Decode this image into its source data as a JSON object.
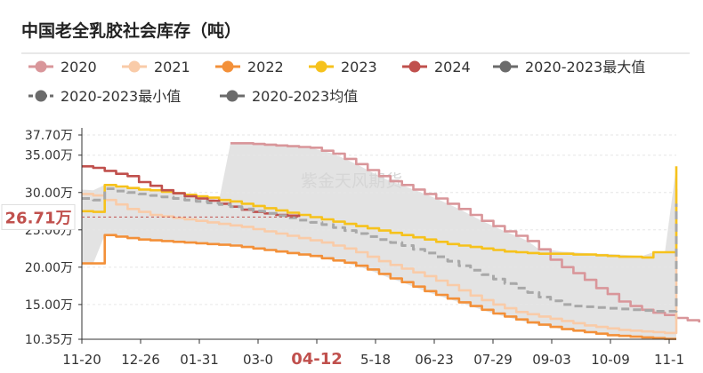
{
  "chart_data": {
    "type": "line",
    "title": "中国老全乳胶社会库存（吨）",
    "watermark": "紫金天风期货",
    "highlight_y_label": "26.71万",
    "highlight_x_label": "04-12",
    "ylim": [
      10.35,
      37.7
    ],
    "y_ticks": [
      "37.70万",
      "35.00万",
      "30.00万",
      "25.00万",
      "20.00万",
      "15.00万",
      "10.35万"
    ],
    "y_tick_values": [
      37.7,
      35.0,
      30.0,
      25.0,
      20.0,
      15.0,
      10.35
    ],
    "x_ticks": [
      "11-20",
      "12-26",
      "01-31",
      "03-0",
      "04-12",
      "5-18",
      "06-23",
      "07-29",
      "09-03",
      "10-09",
      "11-1"
    ],
    "band_color": "#e3e3e3",
    "legend": [
      {
        "name": "2020",
        "color": "#d9969a",
        "dashed": false
      },
      {
        "name": "2021",
        "color": "#f9cba8",
        "dashed": false
      },
      {
        "name": "2022",
        "color": "#f39039",
        "dashed": false
      },
      {
        "name": "2023",
        "color": "#f6c21c",
        "dashed": false
      },
      {
        "name": "2024",
        "color": "#c0504d",
        "dashed": false
      },
      {
        "name": "2020-2023最大值",
        "color": "#6b6b6b",
        "dashed": false
      },
      {
        "name": "2020-2023最小值",
        "color": "#6b6b6b",
        "dashed": true
      },
      {
        "name": "2020-2023均值",
        "color": "#6b6b6b",
        "dashed": false
      }
    ],
    "x_count": 53,
    "series": [
      {
        "name": "2020",
        "color": "#d9969a",
        "dashed": false,
        "x_start": 13,
        "values": [
          36.6,
          36.6,
          36.5,
          36.4,
          36.3,
          36.2,
          36.1,
          36.0,
          35.6,
          35.2,
          34.5,
          33.8,
          33.0,
          32.2,
          31.5,
          31.0,
          30.4,
          29.8,
          29.2,
          28.5,
          27.8,
          27.0,
          26.2,
          25.5,
          24.8,
          24.2,
          23.5,
          22.4,
          21.0,
          20.0,
          19.2,
          18.3,
          17.2,
          16.4,
          15.4,
          14.8,
          14.3,
          13.9,
          13.6,
          13.2,
          12.9,
          12.6
        ]
      },
      {
        "name": "2021",
        "color": "#f9cba8",
        "dashed": false,
        "x_start": 0,
        "values": [
          29.8,
          29.6,
          29.0,
          28.4,
          27.8,
          27.4,
          27.0,
          26.8,
          26.6,
          26.4,
          26.2,
          26.0,
          25.8,
          25.6,
          25.4,
          25.1,
          24.8,
          24.5,
          24.2,
          23.9,
          23.6,
          23.3,
          22.9,
          22.5,
          22.0,
          21.4,
          20.8,
          20.3,
          19.8,
          19.3,
          18.8,
          18.2,
          17.6,
          16.9,
          16.2,
          15.6,
          15.0,
          14.5,
          14.0,
          13.7,
          13.4,
          13.1,
          12.8,
          12.5,
          12.2,
          12.0,
          11.8,
          11.6,
          11.5,
          11.4,
          11.3,
          11.2,
          30.5
        ]
      },
      {
        "name": "2022",
        "color": "#f39039",
        "dashed": false,
        "x_start": 0,
        "values": [
          20.5,
          20.5,
          24.3,
          24.1,
          23.9,
          23.7,
          23.6,
          23.5,
          23.4,
          23.3,
          23.2,
          23.1,
          23.0,
          22.9,
          22.7,
          22.5,
          22.3,
          22.1,
          21.9,
          21.7,
          21.5,
          21.2,
          20.9,
          20.6,
          20.2,
          19.7,
          19.1,
          18.5,
          18.0,
          17.4,
          16.8,
          16.3,
          15.8,
          15.3,
          14.8,
          14.3,
          13.8,
          13.4,
          13.0,
          12.6,
          12.3,
          12.0,
          11.7,
          11.5,
          11.3,
          11.1,
          10.9,
          10.8,
          10.7,
          10.6,
          10.5,
          10.4,
          10.4
        ]
      },
      {
        "name": "2023",
        "color": "#f6c21c",
        "dashed": false,
        "x_start": 0,
        "values": [
          27.5,
          27.4,
          31.0,
          30.8,
          30.6,
          30.4,
          30.3,
          30.1,
          29.9,
          29.7,
          29.5,
          29.3,
          29.0,
          28.8,
          28.5,
          28.2,
          27.9,
          27.6,
          27.3,
          27.0,
          26.7,
          26.4,
          26.1,
          25.8,
          25.5,
          25.2,
          24.9,
          24.6,
          24.3,
          24.0,
          23.7,
          23.4,
          23.1,
          22.9,
          22.7,
          22.5,
          22.3,
          22.1,
          22.0,
          21.9,
          21.8,
          21.8,
          21.8,
          21.7,
          21.7,
          21.6,
          21.5,
          21.4,
          21.4,
          21.3,
          22.0,
          22.0,
          33.5
        ]
      },
      {
        "name": "2024",
        "color": "#c0504d",
        "dashed": false,
        "x_start": 0,
        "values": [
          33.5,
          33.3,
          32.9,
          32.5,
          32.2,
          31.4,
          30.9,
          30.3,
          29.9,
          29.5,
          29.2,
          28.9,
          28.5,
          28.1,
          27.7,
          27.4,
          27.2,
          27.0,
          26.9,
          26.71
        ]
      },
      {
        "name": "2020-2023均值",
        "color": "#a8a8a8",
        "dashed": true,
        "x_start": 0,
        "values": [
          29.2,
          29.0,
          30.5,
          30.2,
          30.0,
          29.8,
          29.6,
          29.4,
          29.2,
          29.0,
          28.8,
          28.6,
          28.4,
          28.1,
          27.8,
          27.5,
          27.2,
          26.9,
          26.6,
          26.3,
          26.0,
          25.7,
          25.3,
          24.9,
          24.5,
          24.1,
          23.7,
          23.3,
          22.9,
          22.4,
          21.9,
          21.4,
          20.8,
          20.2,
          19.6,
          19.0,
          18.4,
          17.8,
          17.2,
          16.6,
          16.0,
          15.5,
          15.0,
          14.8,
          14.7,
          14.6,
          14.5,
          14.4,
          14.3,
          14.2,
          14.1,
          14.1,
          28.5
        ]
      }
    ],
    "band_upper": [
      30.4,
      30.3,
      31.0,
      30.8,
      30.6,
      30.4,
      30.3,
      30.1,
      29.9,
      29.7,
      29.5,
      29.3,
      29.0,
      36.6,
      36.6,
      36.5,
      36.4,
      36.3,
      36.2,
      36.1,
      36.0,
      35.6,
      35.2,
      34.5,
      33.8,
      33.0,
      32.2,
      31.5,
      31.0,
      30.4,
      29.8,
      29.2,
      28.5,
      27.8,
      27.0,
      26.2,
      25.5,
      24.8,
      24.2,
      23.5,
      22.4,
      22.3,
      22.1,
      22.0,
      21.9,
      21.8,
      21.8,
      21.7,
      21.6,
      21.5,
      22.0,
      22.0,
      33.5
    ],
    "band_lower": [
      20.5,
      20.5,
      24.3,
      24.1,
      23.9,
      23.7,
      23.6,
      23.5,
      23.4,
      23.3,
      23.2,
      23.1,
      23.0,
      22.9,
      22.7,
      22.5,
      22.3,
      22.1,
      21.9,
      21.7,
      21.5,
      21.2,
      20.9,
      20.6,
      20.2,
      19.7,
      19.1,
      18.5,
      18.0,
      17.4,
      16.8,
      16.3,
      15.8,
      15.3,
      14.8,
      14.3,
      13.8,
      13.4,
      13.0,
      12.6,
      12.3,
      12.0,
      11.7,
      11.5,
      11.3,
      11.1,
      10.9,
      10.8,
      10.7,
      10.6,
      10.5,
      10.4,
      10.4
    ]
  }
}
